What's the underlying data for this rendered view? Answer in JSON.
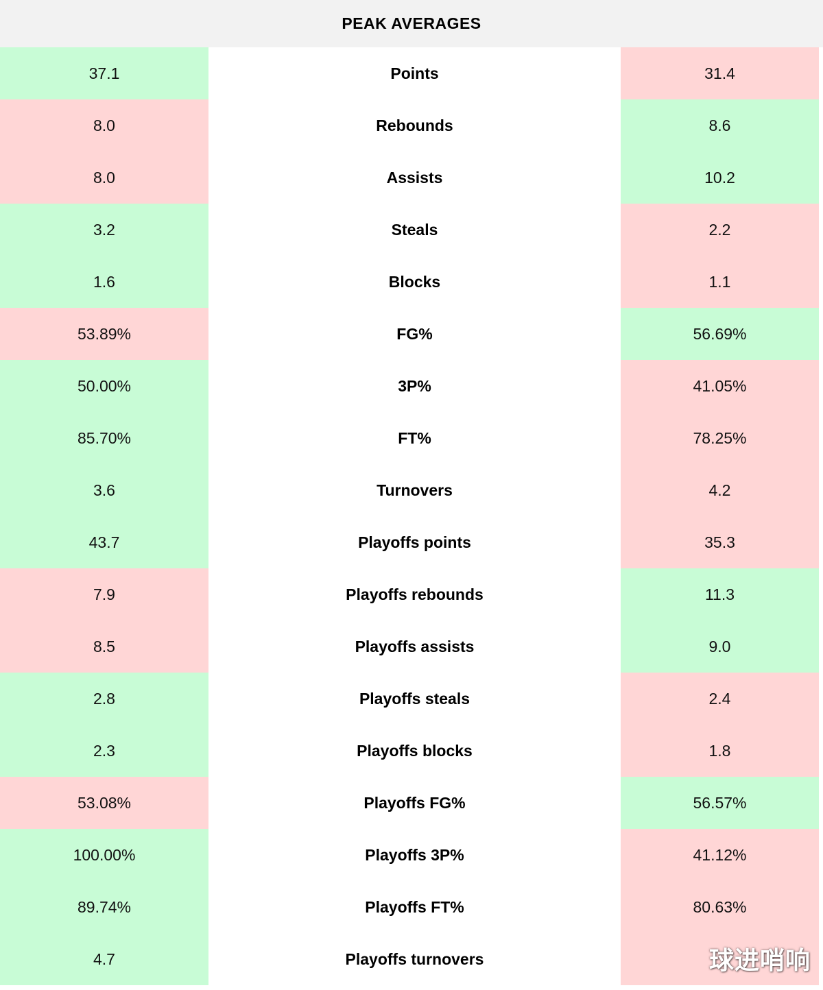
{
  "header": {
    "title": "PEAK AVERAGES"
  },
  "colors": {
    "win": "#c8fcd6",
    "lose": "#ffd6d6",
    "header_bg": "#f2f2f2"
  },
  "rows": [
    {
      "label": "Points",
      "left": "37.1",
      "right": "31.4",
      "left_status": "win",
      "right_status": "lose"
    },
    {
      "label": "Rebounds",
      "left": "8.0",
      "right": "8.6",
      "left_status": "lose",
      "right_status": "win"
    },
    {
      "label": "Assists",
      "left": "8.0",
      "right": "10.2",
      "left_status": "lose",
      "right_status": "win"
    },
    {
      "label": "Steals",
      "left": "3.2",
      "right": "2.2",
      "left_status": "win",
      "right_status": "lose"
    },
    {
      "label": "Blocks",
      "left": "1.6",
      "right": "1.1",
      "left_status": "win",
      "right_status": "lose"
    },
    {
      "label": "FG%",
      "left": "53.89%",
      "right": "56.69%",
      "left_status": "lose",
      "right_status": "win"
    },
    {
      "label": "3P%",
      "left": "50.00%",
      "right": "41.05%",
      "left_status": "win",
      "right_status": "lose"
    },
    {
      "label": "FT%",
      "left": "85.70%",
      "right": "78.25%",
      "left_status": "win",
      "right_status": "lose"
    },
    {
      "label": "Turnovers",
      "left": "3.6",
      "right": "4.2",
      "left_status": "win",
      "right_status": "lose"
    },
    {
      "label": "Playoffs points",
      "left": "43.7",
      "right": "35.3",
      "left_status": "win",
      "right_status": "lose"
    },
    {
      "label": "Playoffs rebounds",
      "left": "7.9",
      "right": "11.3",
      "left_status": "lose",
      "right_status": "win"
    },
    {
      "label": "Playoffs assists",
      "left": "8.5",
      "right": "9.0",
      "left_status": "lose",
      "right_status": "win"
    },
    {
      "label": "Playoffs steals",
      "left": "2.8",
      "right": "2.4",
      "left_status": "win",
      "right_status": "lose"
    },
    {
      "label": "Playoffs blocks",
      "left": "2.3",
      "right": "1.8",
      "left_status": "win",
      "right_status": "lose"
    },
    {
      "label": "Playoffs FG%",
      "left": "53.08%",
      "right": "56.57%",
      "left_status": "lose",
      "right_status": "win"
    },
    {
      "label": "Playoffs 3P%",
      "left": "100.00%",
      "right": "41.12%",
      "left_status": "win",
      "right_status": "lose"
    },
    {
      "label": "Playoffs FT%",
      "left": "89.74%",
      "right": "80.63%",
      "left_status": "win",
      "right_status": "lose"
    },
    {
      "label": "Playoffs turnovers",
      "left": "4.7",
      "right": "",
      "left_status": "win",
      "right_status": "lose"
    }
  ],
  "watermark": {
    "text": "球进哨响"
  }
}
